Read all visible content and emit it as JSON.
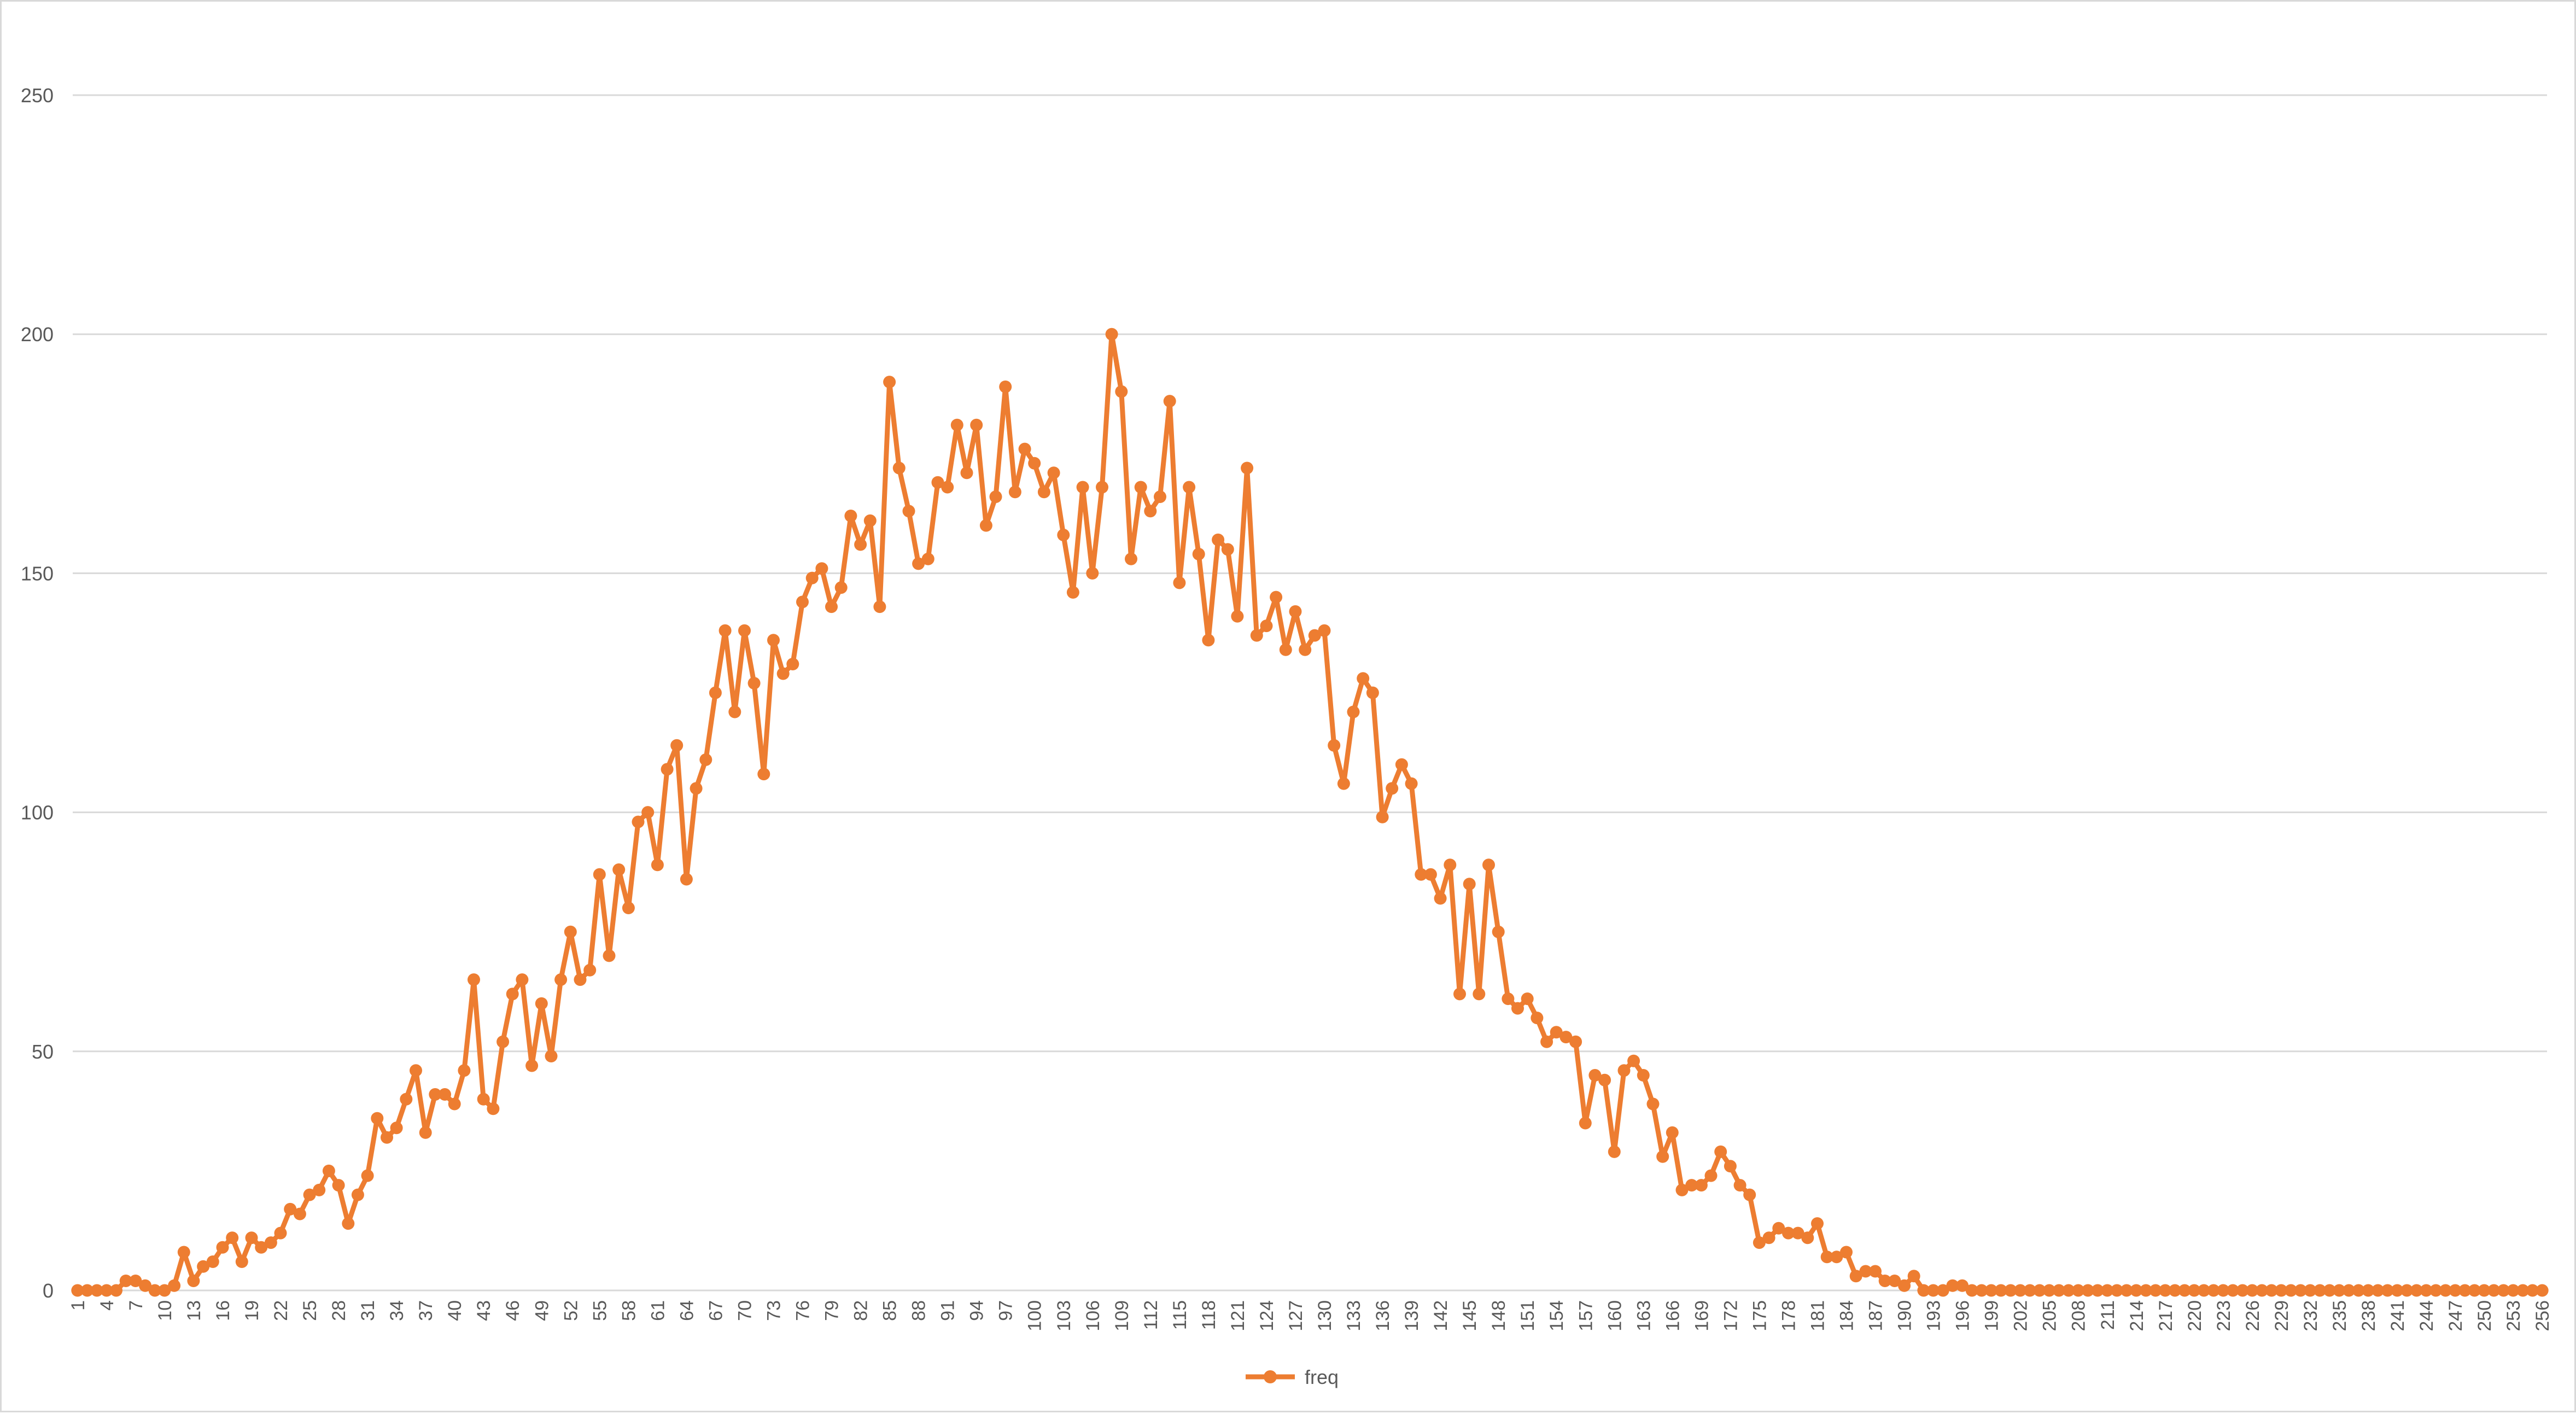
{
  "colors": {
    "series": "#ed7d31",
    "grid": "#d9d9d9",
    "axis_text": "#595959",
    "border": "#d9d9d9"
  },
  "chart_data": {
    "type": "line",
    "markers": true,
    "title": "",
    "xlabel": "",
    "ylabel": "",
    "ylim": [
      0,
      250
    ],
    "yticks": [
      0,
      50,
      100,
      150,
      200,
      250
    ],
    "grid": "horizontal",
    "legend_position": "bottom",
    "x_tick_every": 3,
    "x": [
      1,
      2,
      3,
      4,
      5,
      6,
      7,
      8,
      9,
      10,
      11,
      12,
      13,
      14,
      15,
      16,
      17,
      18,
      19,
      20,
      21,
      22,
      23,
      24,
      25,
      26,
      27,
      28,
      29,
      30,
      31,
      32,
      33,
      34,
      35,
      36,
      37,
      38,
      39,
      40,
      41,
      42,
      43,
      44,
      45,
      46,
      47,
      48,
      49,
      50,
      51,
      52,
      53,
      54,
      55,
      56,
      57,
      58,
      59,
      60,
      61,
      62,
      63,
      64,
      65,
      66,
      67,
      68,
      69,
      70,
      71,
      72,
      73,
      74,
      75,
      76,
      77,
      78,
      79,
      80,
      81,
      82,
      83,
      84,
      85,
      86,
      87,
      88,
      89,
      90,
      91,
      92,
      93,
      94,
      95,
      96,
      97,
      98,
      99,
      100,
      101,
      102,
      103,
      104,
      105,
      106,
      107,
      108,
      109,
      110,
      111,
      112,
      113,
      114,
      115,
      116,
      117,
      118,
      119,
      120,
      121,
      122,
      123,
      124,
      125,
      126,
      127,
      128,
      129,
      130,
      131,
      132,
      133,
      134,
      135,
      136,
      137,
      138,
      139,
      140,
      141,
      142,
      143,
      144,
      145,
      146,
      147,
      148,
      149,
      150,
      151,
      152,
      153,
      154,
      155,
      156,
      157,
      158,
      159,
      160,
      161,
      162,
      163,
      164,
      165,
      166,
      167,
      168,
      169,
      170,
      171,
      172,
      173,
      174,
      175,
      176,
      177,
      178,
      179,
      180,
      181,
      182,
      183,
      184,
      185,
      186,
      187,
      188,
      189,
      190,
      191,
      192,
      193,
      194,
      195,
      196,
      197,
      198,
      199,
      200,
      201,
      202,
      203,
      204,
      205,
      206,
      207,
      208,
      209,
      210,
      211,
      212,
      213,
      214,
      215,
      216,
      217,
      218,
      219,
      220,
      221,
      222,
      223,
      224,
      225,
      226,
      227,
      228,
      229,
      230,
      231,
      232,
      233,
      234,
      235,
      236,
      237,
      238,
      239,
      240,
      241,
      242,
      243,
      244,
      245,
      246,
      247,
      248,
      249,
      250,
      251,
      252,
      253,
      254,
      255,
      256
    ],
    "series": [
      {
        "name": "freq",
        "values": [
          0,
          0,
          0,
          0,
          0,
          2,
          2,
          1,
          0,
          0,
          1,
          8,
          2,
          5,
          6,
          9,
          11,
          6,
          11,
          9,
          10,
          12,
          17,
          16,
          20,
          21,
          25,
          22,
          14,
          20,
          24,
          36,
          32,
          34,
          40,
          46,
          33,
          41,
          41,
          39,
          46,
          65,
          40,
          38,
          52,
          62,
          65,
          47,
          60,
          49,
          65,
          75,
          65,
          67,
          87,
          70,
          88,
          80,
          98,
          100,
          89,
          109,
          114,
          86,
          105,
          111,
          125,
          138,
          121,
          138,
          127,
          108,
          136,
          129,
          131,
          144,
          149,
          151,
          143,
          147,
          162,
          156,
          161,
          143,
          190,
          172,
          163,
          152,
          153,
          169,
          168,
          181,
          171,
          181,
          160,
          166,
          189,
          167,
          176,
          173,
          167,
          171,
          158,
          146,
          168,
          150,
          168,
          200,
          188,
          153,
          168,
          163,
          166,
          186,
          148,
          168,
          154,
          136,
          157,
          155,
          141,
          172,
          137,
          139,
          145,
          134,
          142,
          134,
          137,
          138,
          114,
          106,
          121,
          128,
          125,
          99,
          105,
          110,
          106,
          87,
          87,
          82,
          89,
          62,
          85,
          62,
          89,
          75,
          61,
          59,
          61,
          57,
          52,
          54,
          53,
          52,
          35,
          45,
          44,
          29,
          46,
          48,
          45,
          39,
          28,
          33,
          21,
          22,
          22,
          24,
          29,
          26,
          22,
          20,
          10,
          11,
          13,
          12,
          12,
          11,
          14,
          7,
          7,
          8,
          3,
          4,
          4,
          2,
          2,
          1,
          3,
          0,
          0,
          0,
          1,
          1,
          0,
          0,
          0,
          0,
          0,
          0,
          0,
          0,
          0,
          0,
          0,
          0,
          0,
          0,
          0,
          0,
          0,
          0,
          0,
          0,
          0,
          0,
          0,
          0,
          0,
          0,
          0,
          0,
          0,
          0,
          0,
          0,
          0,
          0,
          0,
          0,
          0,
          0,
          0,
          0,
          0,
          0,
          0,
          0,
          0,
          0,
          0,
          0,
          0,
          0,
          0,
          0,
          0,
          0,
          0,
          0,
          0,
          0,
          0,
          0
        ]
      }
    ]
  }
}
